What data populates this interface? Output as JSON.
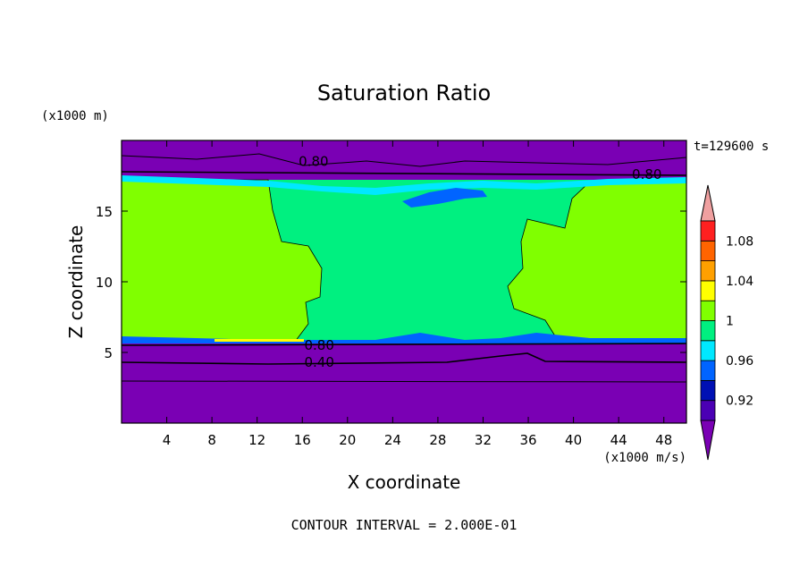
{
  "chart_data": {
    "type": "heatmap",
    "title": "Saturation Ratio",
    "xlabel": "X coordinate",
    "ylabel": "Z coordinate",
    "x_units": "(x1000 m/s)",
    "y_units": "(x1000 m)",
    "time_label": "t=129600 s",
    "footer": "CONTOUR INTERVAL = 2.000E-01",
    "xlim": [
      0,
      50
    ],
    "ylim": [
      0,
      20
    ],
    "x_ticks": [
      4,
      8,
      12,
      16,
      20,
      24,
      28,
      32,
      36,
      40,
      44,
      48
    ],
    "y_ticks": [
      5,
      10,
      15
    ],
    "regions": [
      {
        "name": "lower dry layer",
        "z_range": [
          0,
          5.8
        ],
        "value_class": "<0.90"
      },
      {
        "name": "left cloud block",
        "x_range": [
          0,
          13
        ],
        "z_range": [
          6,
          16.7
        ],
        "value_class": "1-1.02"
      },
      {
        "name": "central band",
        "x_range": [
          13,
          35
        ],
        "z_range": [
          6,
          16.7
        ],
        "value_class": "0.98-1"
      },
      {
        "name": "right cloud block",
        "x_range": [
          35,
          50
        ],
        "z_range": [
          6,
          16.7
        ],
        "value_class": "1-1.02"
      },
      {
        "name": "upper dry layer",
        "z_range": [
          17.5,
          20
        ],
        "value_class": "<0.90"
      }
    ],
    "contour_labels": [
      {
        "text": "0.80",
        "x": 17,
        "z": 18.5
      },
      {
        "text": "0.80",
        "x": 46.5,
        "z": 17.6
      },
      {
        "text": "0.80",
        "x": 17.5,
        "z": 5.5
      },
      {
        "text": "0.40",
        "x": 17.5,
        "z": 4.3
      }
    ],
    "colorbar": {
      "levels": [
        {
          "label": "",
          "color": "#7a00b4"
        },
        {
          "label": "0.92",
          "color": "#4b00b4"
        },
        {
          "label": "",
          "color": "#0010b4"
        },
        {
          "label": "0.96",
          "color": "#0064ff"
        },
        {
          "label": "",
          "color": "#00e8ff"
        },
        {
          "label": "1",
          "color": "#00f080"
        },
        {
          "label": "",
          "color": "#80ff00"
        },
        {
          "label": "1.04",
          "color": "#ffff00"
        },
        {
          "label": "",
          "color": "#ffa000"
        },
        {
          "label": "1.08",
          "color": "#ff6400"
        },
        {
          "label": "",
          "color": "#ff2020"
        },
        {
          "label": "",
          "color": "#f0a0a0"
        }
      ]
    }
  }
}
